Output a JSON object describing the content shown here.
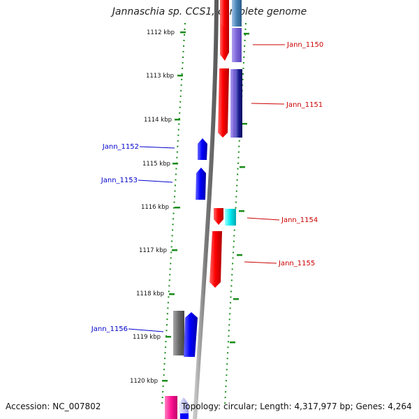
{
  "title": "Jannaschia sp. CCS1, complete genome",
  "footer": {
    "accession": "Accession: NC_007802",
    "topology": "Topology: circular; Length: 4,317,977 bp; Genes: 4,264"
  },
  "colors": {
    "backbone": "#808080",
    "tick": "#1a8c1a",
    "label_forward_strand": "#cc0000",
    "label_reverse_strand": "#0000cc"
  },
  "scale_ticks": [
    "1112 kbp",
    "1113 kbp",
    "1114 kbp",
    "1115 kbp",
    "1116 kbp",
    "1117 kbp",
    "1118 kbp",
    "1119 kbp",
    "1120 kbp"
  ],
  "gene_labels": [
    {
      "name": "Jann_1150",
      "strand": "forward"
    },
    {
      "name": "Jann_1151",
      "strand": "forward"
    },
    {
      "name": "Jann_1152",
      "strand": "reverse"
    },
    {
      "name": "Jann_1153",
      "strand": "reverse"
    },
    {
      "name": "Jann_1154",
      "strand": "forward"
    },
    {
      "name": "Jann_1155",
      "strand": "forward"
    },
    {
      "name": "Jann_1156",
      "strand": "reverse"
    }
  ]
}
